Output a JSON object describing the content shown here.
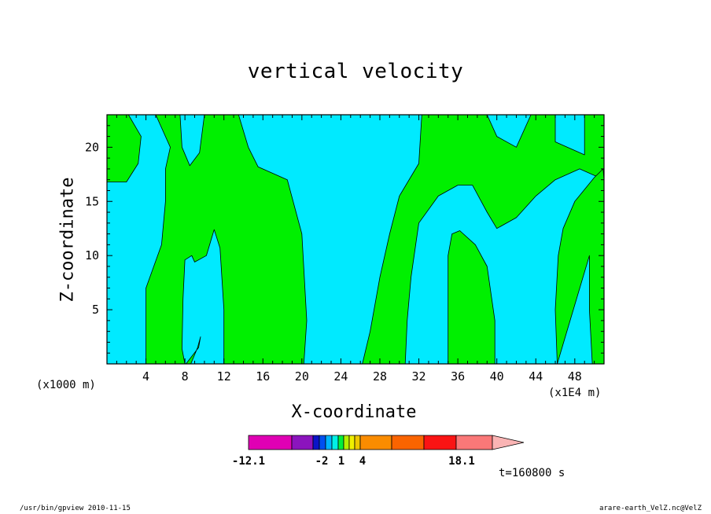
{
  "chart_data": {
    "type": "heatmap",
    "title": "vertical velocity",
    "xlabel": "X-coordinate",
    "ylabel": "Z-coordinate",
    "x_unit_left": "(x1000 m)",
    "x_unit_right": "(x1E4 m)",
    "xlim": [
      0,
      51
    ],
    "ylim": [
      0,
      23
    ],
    "x_ticks": [
      4,
      8,
      12,
      16,
      20,
      24,
      28,
      32,
      36,
      40,
      44,
      48
    ],
    "y_ticks": [
      5,
      10,
      15,
      20
    ],
    "fill_colors": {
      "negative": "#00eaff",
      "positive": "#00f000"
    },
    "regions": [
      {
        "sign": "positive",
        "polygon": [
          [
            0,
            23
          ],
          [
            2.2,
            23
          ],
          [
            3.5,
            21
          ],
          [
            3.2,
            18.5
          ],
          [
            2,
            16.8
          ],
          [
            0,
            16.8
          ]
        ]
      },
      {
        "sign": "positive",
        "polygon": [
          [
            4,
            0
          ],
          [
            4,
            7
          ],
          [
            5.6,
            11
          ],
          [
            6,
            15
          ],
          [
            6,
            18
          ],
          [
            6.5,
            20
          ],
          [
            5,
            23
          ],
          [
            7.5,
            23
          ],
          [
            7.7,
            20
          ],
          [
            8.5,
            18.3
          ],
          [
            9.5,
            19.5
          ],
          [
            10,
            23
          ],
          [
            13.5,
            23
          ],
          [
            14.5,
            20
          ],
          [
            15.5,
            18.2
          ],
          [
            18.5,
            17
          ],
          [
            20,
            12
          ],
          [
            20.5,
            4
          ],
          [
            20.2,
            0
          ],
          [
            12,
            0
          ],
          [
            12,
            5
          ],
          [
            11.6,
            10.7
          ],
          [
            11,
            12.4
          ],
          [
            10.2,
            10
          ],
          [
            9,
            9.4
          ],
          [
            8.7,
            10
          ],
          [
            8,
            9.6
          ],
          [
            7.8,
            6
          ],
          [
            7.7,
            1.4
          ],
          [
            8,
            0
          ]
        ]
      },
      {
        "sign": "positive",
        "polygon": [
          [
            8.1,
            0
          ],
          [
            9.4,
            1.5
          ],
          [
            9.6,
            2.5
          ],
          [
            9.3,
            1.5
          ],
          [
            8.6,
            0
          ]
        ]
      },
      {
        "sign": "positive",
        "polygon": [
          [
            26.2,
            0
          ],
          [
            27,
            3
          ],
          [
            28,
            8
          ],
          [
            29,
            12
          ],
          [
            30,
            15.5
          ],
          [
            32,
            18.5
          ],
          [
            32.3,
            23
          ],
          [
            39,
            23
          ],
          [
            40,
            21
          ],
          [
            42,
            20
          ],
          [
            43.5,
            23
          ],
          [
            46,
            23
          ],
          [
            46,
            20.5
          ],
          [
            49,
            19.3
          ],
          [
            49,
            23
          ],
          [
            51,
            23
          ],
          [
            51,
            17
          ],
          [
            48.5,
            18
          ],
          [
            46,
            17
          ],
          [
            44,
            15.5
          ],
          [
            42,
            13.5
          ],
          [
            40,
            12.5
          ],
          [
            39,
            14
          ],
          [
            37.5,
            16.5
          ],
          [
            36,
            16.5
          ],
          [
            34,
            15.5
          ],
          [
            32,
            13
          ],
          [
            31.2,
            8
          ],
          [
            30.8,
            4
          ],
          [
            30.6,
            0
          ]
        ]
      },
      {
        "sign": "positive",
        "polygon": [
          [
            35,
            0
          ],
          [
            35,
            10
          ],
          [
            35.4,
            12
          ],
          [
            36.2,
            12.3
          ],
          [
            37.8,
            11
          ],
          [
            39,
            9
          ],
          [
            39.8,
            4
          ],
          [
            39.8,
            0
          ]
        ]
      },
      {
        "sign": "positive",
        "polygon": [
          [
            46.2,
            0
          ],
          [
            46,
            5
          ],
          [
            46.3,
            10
          ],
          [
            46.8,
            12.5
          ],
          [
            48,
            15
          ],
          [
            50,
            17.2
          ],
          [
            50.9,
            18
          ],
          [
            51,
            17
          ],
          [
            51,
            0
          ],
          [
            49.8,
            0
          ],
          [
            49.5,
            5
          ],
          [
            49.5,
            10
          ]
        ]
      }
    ],
    "colorbar": {
      "colors": [
        "#e000b4",
        "#8b14bd",
        "#0a14c8",
        "#0050f0",
        "#00b4ff",
        "#00f0e6",
        "#00f03c",
        "#b4f000",
        "#f0f000",
        "#f0c800",
        "#fa8c00",
        "#fa6400",
        "#fa1414",
        "#fa7878",
        "#fab4b4"
      ],
      "labels": [
        "-12.1",
        "-2",
        "1",
        "4",
        "18.1"
      ]
    },
    "time_label": "t=160800 s",
    "footer_left": "/usr/bin/gpview   2010-11-15",
    "footer_right": "arare-earth_VelZ.nc@VelZ"
  }
}
